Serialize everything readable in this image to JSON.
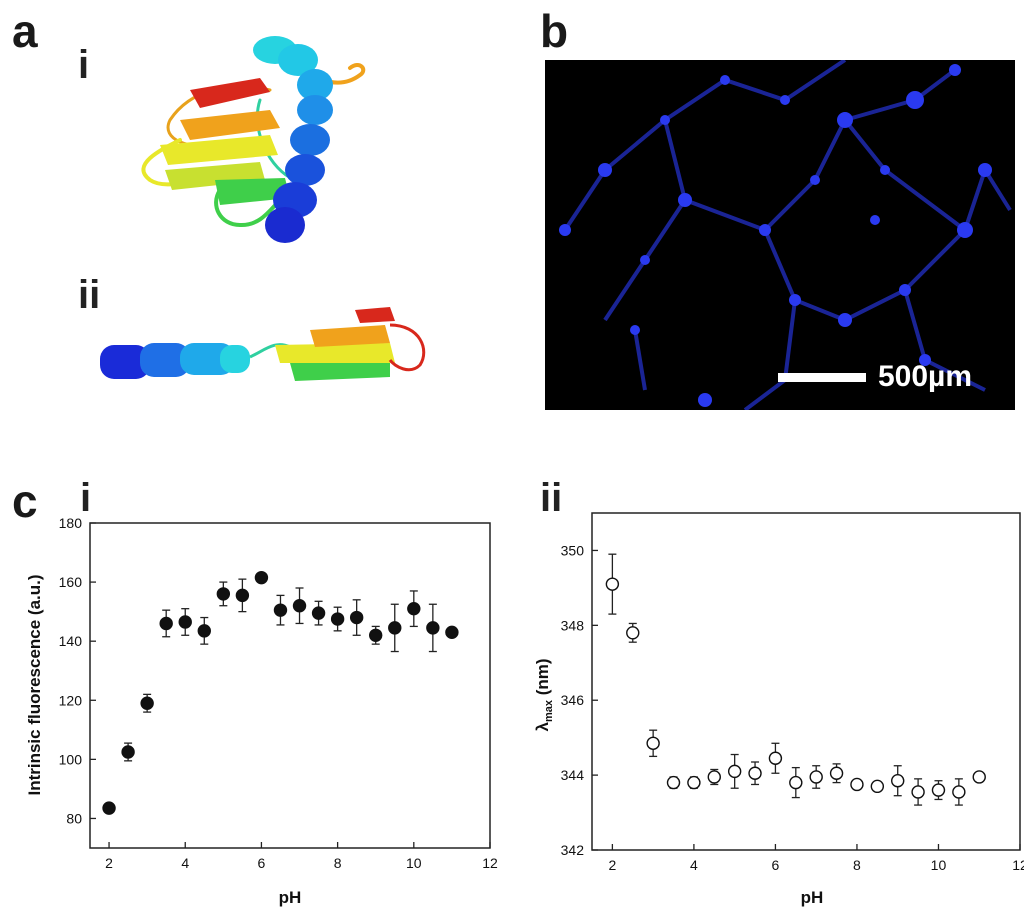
{
  "panels": {
    "a": "a",
    "a_i": "i",
    "a_ii": "ii",
    "b": "b",
    "c": "c",
    "c_i": "i",
    "c_ii": "ii"
  },
  "micrograph": {
    "scale_bar_label": "500µm",
    "background_color": "#000000",
    "feature_color": "#2233dd"
  },
  "protein_colors": [
    "#1a2bd8",
    "#1f8fe8",
    "#27d3e0",
    "#3fcf4a",
    "#e8e82a",
    "#f0a21c",
    "#d8281c"
  ],
  "chart_data": [
    {
      "type": "scatter",
      "xlabel": "pH",
      "ylabel": "Intrinsic fluorescence (a.u.)",
      "xlim": [
        1.5,
        12
      ],
      "ylim": [
        70,
        180
      ],
      "xticks": [
        "2",
        "4",
        "6",
        "8",
        "10",
        "12"
      ],
      "yticks": [
        "80",
        "100",
        "120",
        "140",
        "160",
        "180"
      ],
      "marker": "filled-circle",
      "x": [
        2,
        2.5,
        3,
        3.5,
        4,
        4.5,
        5,
        5.5,
        6,
        6.5,
        7,
        7.5,
        8,
        8.5,
        9,
        9.5,
        10,
        10.5,
        11
      ],
      "y": [
        83.5,
        102.5,
        119,
        146,
        146.5,
        143.5,
        156,
        155.5,
        161.5,
        150.5,
        152,
        149.5,
        147.5,
        148,
        142,
        144.5,
        151,
        144.5,
        143
      ],
      "errors": [
        1,
        3,
        3,
        4.5,
        4.5,
        4.5,
        4,
        5.5,
        1.5,
        5,
        6,
        4,
        4,
        6,
        3,
        8,
        6,
        8,
        1
      ]
    },
    {
      "type": "scatter",
      "xlabel": "pH",
      "ylabel": "λmax (nm)",
      "ylabel_main": "λ",
      "ylabel_sub": "max",
      "ylabel_unit": " (nm)",
      "xlim": [
        1.5,
        12
      ],
      "ylim": [
        342,
        351
      ],
      "xticks": [
        "2",
        "4",
        "6",
        "8",
        "10",
        "12"
      ],
      "yticks": [
        "342",
        "344",
        "346",
        "348",
        "350"
      ],
      "marker": "open-circle",
      "x": [
        2,
        2.5,
        3,
        3.5,
        4,
        4.5,
        5,
        5.5,
        6,
        6.5,
        7,
        7.5,
        8,
        8.5,
        9,
        9.5,
        10,
        10.5,
        11
      ],
      "y": [
        349.1,
        347.8,
        344.85,
        343.8,
        343.8,
        343.95,
        344.1,
        344.05,
        344.45,
        343.8,
        343.95,
        344.05,
        343.75,
        343.7,
        343.85,
        343.55,
        343.6,
        343.55,
        343.95
      ],
      "errors": [
        0.8,
        0.25,
        0.35,
        0.15,
        0.15,
        0.2,
        0.45,
        0.3,
        0.4,
        0.4,
        0.3,
        0.25,
        0.1,
        0.1,
        0.4,
        0.35,
        0.25,
        0.35,
        0.1
      ]
    }
  ]
}
